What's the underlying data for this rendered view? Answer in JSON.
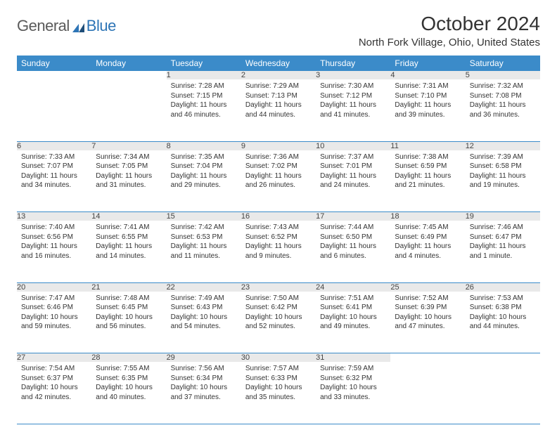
{
  "logo": {
    "text1": "General",
    "text2": "Blue"
  },
  "title": "October 2024",
  "subtitle": "North Fork Village, Ohio, United States",
  "colors": {
    "header_bg": "#3b8bc9",
    "header_text": "#ffffff",
    "daynum_bg": "#e9e9e9",
    "row_border": "#3b8bc9",
    "logo_gray": "#5a5a5a",
    "logo_blue": "#2e75b6"
  },
  "weekdays": [
    "Sunday",
    "Monday",
    "Tuesday",
    "Wednesday",
    "Thursday",
    "Friday",
    "Saturday"
  ],
  "weeks": [
    [
      null,
      null,
      {
        "n": "1",
        "sunrise": "Sunrise: 7:28 AM",
        "sunset": "Sunset: 7:15 PM",
        "daylight": "Daylight: 11 hours and 46 minutes."
      },
      {
        "n": "2",
        "sunrise": "Sunrise: 7:29 AM",
        "sunset": "Sunset: 7:13 PM",
        "daylight": "Daylight: 11 hours and 44 minutes."
      },
      {
        "n": "3",
        "sunrise": "Sunrise: 7:30 AM",
        "sunset": "Sunset: 7:12 PM",
        "daylight": "Daylight: 11 hours and 41 minutes."
      },
      {
        "n": "4",
        "sunrise": "Sunrise: 7:31 AM",
        "sunset": "Sunset: 7:10 PM",
        "daylight": "Daylight: 11 hours and 39 minutes."
      },
      {
        "n": "5",
        "sunrise": "Sunrise: 7:32 AM",
        "sunset": "Sunset: 7:08 PM",
        "daylight": "Daylight: 11 hours and 36 minutes."
      }
    ],
    [
      {
        "n": "6",
        "sunrise": "Sunrise: 7:33 AM",
        "sunset": "Sunset: 7:07 PM",
        "daylight": "Daylight: 11 hours and 34 minutes."
      },
      {
        "n": "7",
        "sunrise": "Sunrise: 7:34 AM",
        "sunset": "Sunset: 7:05 PM",
        "daylight": "Daylight: 11 hours and 31 minutes."
      },
      {
        "n": "8",
        "sunrise": "Sunrise: 7:35 AM",
        "sunset": "Sunset: 7:04 PM",
        "daylight": "Daylight: 11 hours and 29 minutes."
      },
      {
        "n": "9",
        "sunrise": "Sunrise: 7:36 AM",
        "sunset": "Sunset: 7:02 PM",
        "daylight": "Daylight: 11 hours and 26 minutes."
      },
      {
        "n": "10",
        "sunrise": "Sunrise: 7:37 AM",
        "sunset": "Sunset: 7:01 PM",
        "daylight": "Daylight: 11 hours and 24 minutes."
      },
      {
        "n": "11",
        "sunrise": "Sunrise: 7:38 AM",
        "sunset": "Sunset: 6:59 PM",
        "daylight": "Daylight: 11 hours and 21 minutes."
      },
      {
        "n": "12",
        "sunrise": "Sunrise: 7:39 AM",
        "sunset": "Sunset: 6:58 PM",
        "daylight": "Daylight: 11 hours and 19 minutes."
      }
    ],
    [
      {
        "n": "13",
        "sunrise": "Sunrise: 7:40 AM",
        "sunset": "Sunset: 6:56 PM",
        "daylight": "Daylight: 11 hours and 16 minutes."
      },
      {
        "n": "14",
        "sunrise": "Sunrise: 7:41 AM",
        "sunset": "Sunset: 6:55 PM",
        "daylight": "Daylight: 11 hours and 14 minutes."
      },
      {
        "n": "15",
        "sunrise": "Sunrise: 7:42 AM",
        "sunset": "Sunset: 6:53 PM",
        "daylight": "Daylight: 11 hours and 11 minutes."
      },
      {
        "n": "16",
        "sunrise": "Sunrise: 7:43 AM",
        "sunset": "Sunset: 6:52 PM",
        "daylight": "Daylight: 11 hours and 9 minutes."
      },
      {
        "n": "17",
        "sunrise": "Sunrise: 7:44 AM",
        "sunset": "Sunset: 6:50 PM",
        "daylight": "Daylight: 11 hours and 6 minutes."
      },
      {
        "n": "18",
        "sunrise": "Sunrise: 7:45 AM",
        "sunset": "Sunset: 6:49 PM",
        "daylight": "Daylight: 11 hours and 4 minutes."
      },
      {
        "n": "19",
        "sunrise": "Sunrise: 7:46 AM",
        "sunset": "Sunset: 6:47 PM",
        "daylight": "Daylight: 11 hours and 1 minute."
      }
    ],
    [
      {
        "n": "20",
        "sunrise": "Sunrise: 7:47 AM",
        "sunset": "Sunset: 6:46 PM",
        "daylight": "Daylight: 10 hours and 59 minutes."
      },
      {
        "n": "21",
        "sunrise": "Sunrise: 7:48 AM",
        "sunset": "Sunset: 6:45 PM",
        "daylight": "Daylight: 10 hours and 56 minutes."
      },
      {
        "n": "22",
        "sunrise": "Sunrise: 7:49 AM",
        "sunset": "Sunset: 6:43 PM",
        "daylight": "Daylight: 10 hours and 54 minutes."
      },
      {
        "n": "23",
        "sunrise": "Sunrise: 7:50 AM",
        "sunset": "Sunset: 6:42 PM",
        "daylight": "Daylight: 10 hours and 52 minutes."
      },
      {
        "n": "24",
        "sunrise": "Sunrise: 7:51 AM",
        "sunset": "Sunset: 6:41 PM",
        "daylight": "Daylight: 10 hours and 49 minutes."
      },
      {
        "n": "25",
        "sunrise": "Sunrise: 7:52 AM",
        "sunset": "Sunset: 6:39 PM",
        "daylight": "Daylight: 10 hours and 47 minutes."
      },
      {
        "n": "26",
        "sunrise": "Sunrise: 7:53 AM",
        "sunset": "Sunset: 6:38 PM",
        "daylight": "Daylight: 10 hours and 44 minutes."
      }
    ],
    [
      {
        "n": "27",
        "sunrise": "Sunrise: 7:54 AM",
        "sunset": "Sunset: 6:37 PM",
        "daylight": "Daylight: 10 hours and 42 minutes."
      },
      {
        "n": "28",
        "sunrise": "Sunrise: 7:55 AM",
        "sunset": "Sunset: 6:35 PM",
        "daylight": "Daylight: 10 hours and 40 minutes."
      },
      {
        "n": "29",
        "sunrise": "Sunrise: 7:56 AM",
        "sunset": "Sunset: 6:34 PM",
        "daylight": "Daylight: 10 hours and 37 minutes."
      },
      {
        "n": "30",
        "sunrise": "Sunrise: 7:57 AM",
        "sunset": "Sunset: 6:33 PM",
        "daylight": "Daylight: 10 hours and 35 minutes."
      },
      {
        "n": "31",
        "sunrise": "Sunrise: 7:59 AM",
        "sunset": "Sunset: 6:32 PM",
        "daylight": "Daylight: 10 hours and 33 minutes."
      },
      null,
      null
    ]
  ]
}
